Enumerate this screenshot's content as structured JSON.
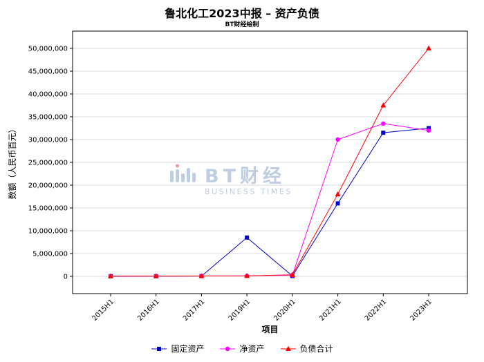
{
  "page": {
    "title": "鲁北化工2023中报 – 资产负债",
    "subtitle": "BT财经绘制",
    "watermark": {
      "text": "BT财经",
      "subtext": "BUSINESS TIMES"
    }
  },
  "chart_data": {
    "type": "line",
    "title": "鲁北化工2023中报 – 资产负债",
    "subtitle": "BT财经绘制",
    "xlabel": "项目",
    "ylabel": "数额（人民币百元）",
    "categories": [
      "2015H1",
      "2016H1",
      "2017H1",
      "2019H1",
      "2020H1",
      "2021H1",
      "2022H1",
      "2023H1"
    ],
    "series": [
      {
        "name": "固定资产",
        "color": "#0000cc",
        "marker": "square",
        "values": [
          20000,
          30000,
          50000,
          8500000,
          80000,
          16000000,
          31500000,
          32500000
        ]
      },
      {
        "name": "净资产",
        "color": "#ff00ff",
        "marker": "circle",
        "values": [
          50000,
          70000,
          90000,
          120000,
          250000,
          30000000,
          33500000,
          32000000
        ]
      },
      {
        "name": "负债合计",
        "color": "#ff0000",
        "marker": "triangle",
        "values": [
          30000,
          50000,
          70000,
          90000,
          350000,
          18000000,
          37500000,
          50000000
        ]
      }
    ],
    "ylim": [
      0,
      50000000
    ],
    "ytick_step": 5000000,
    "grid": true,
    "legend_position": "bottom",
    "colors": {
      "grid": "#d8d8d8",
      "axis": "#000000",
      "watermark": "#b7c8dc"
    }
  }
}
